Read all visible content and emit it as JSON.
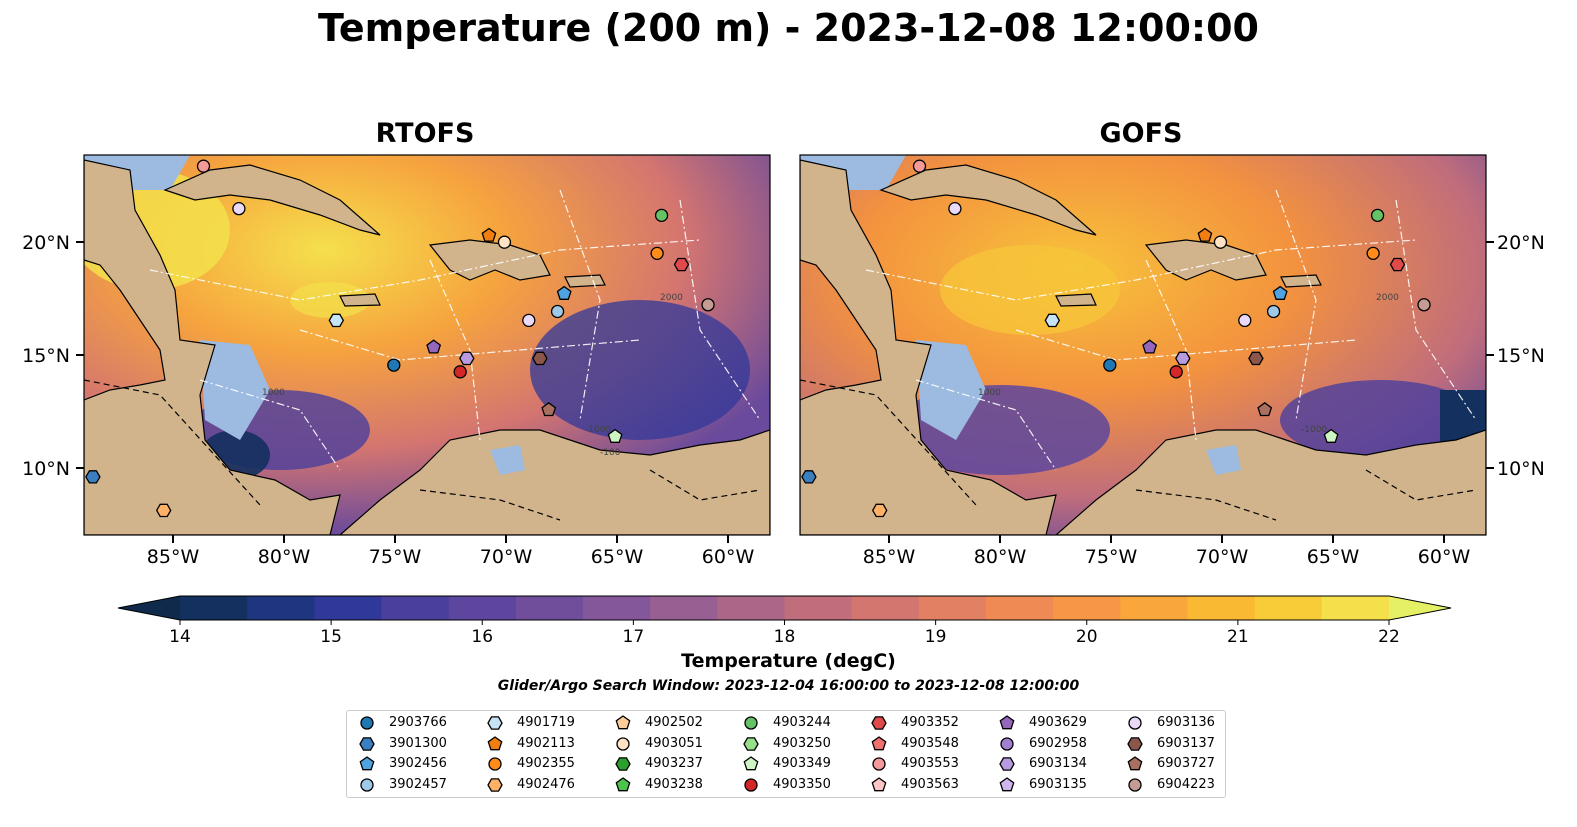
{
  "title": "Temperature (200 m) - 2023-12-08 12:00:00",
  "panels": [
    {
      "title": "RTOFS",
      "lon_ticks": [
        "85°W",
        "80°W",
        "75°W",
        "70°W",
        "65°W",
        "60°W"
      ],
      "lat_ticks": [
        "20°N",
        "15°N",
        "10°N"
      ]
    },
    {
      "title": "GOFS",
      "lon_ticks": [
        "85°W",
        "80°W",
        "75°W",
        "70°W",
        "65°W",
        "60°W"
      ],
      "lat_ticks": [
        "20°N",
        "15°N",
        "10°N"
      ]
    }
  ],
  "contour_labels": [
    "1000",
    "-1000",
    "2000",
    "-100"
  ],
  "colorbar": {
    "label": "Temperature (degC)",
    "min": 14,
    "max": 22,
    "step": 0.5,
    "ticks": [
      "14",
      "15",
      "16",
      "17",
      "18",
      "19",
      "20",
      "21",
      "22"
    ],
    "colors": [
      "#0f2a4a",
      "#14305e",
      "#1f3580",
      "#30389a",
      "#4b3f9e",
      "#5d469e",
      "#714e9c",
      "#84579a",
      "#985f92",
      "#ac6787",
      "#c06d7c",
      "#d37670",
      "#e28064",
      "#ef8a55",
      "#f69646",
      "#f9a63a",
      "#fab933",
      "#f8cc38",
      "#f3e04a",
      "#e5f064"
    ],
    "extend": "both"
  },
  "search_window": "Glider/Argo Search Window: 2023-12-04 16:00:00 to 2023-12-08 12:00:00",
  "legend": [
    {
      "id": "2903766",
      "marker": "circle",
      "color": "#1f77b4"
    },
    {
      "id": "3901300",
      "marker": "hexagon",
      "color": "#3a7fc0"
    },
    {
      "id": "3902456",
      "marker": "pentagon",
      "color": "#4ea3e0"
    },
    {
      "id": "3902457",
      "marker": "circle",
      "color": "#9ecae9"
    },
    {
      "id": "4901719",
      "marker": "hexagon",
      "color": "#c6e4f5"
    },
    {
      "id": "4902113",
      "marker": "pentagon",
      "color": "#f07e10"
    },
    {
      "id": "4902355",
      "marker": "circle",
      "color": "#ff8c1a"
    },
    {
      "id": "4902476",
      "marker": "hexagon",
      "color": "#ffb266"
    },
    {
      "id": "4902502",
      "marker": "pentagon",
      "color": "#ffcc99"
    },
    {
      "id": "4903051",
      "marker": "circle",
      "color": "#ffe3c4"
    },
    {
      "id": "4903237",
      "marker": "hexagon",
      "color": "#2ca02c"
    },
    {
      "id": "4903238",
      "marker": "pentagon",
      "color": "#4cc44c"
    },
    {
      "id": "4903244",
      "marker": "circle",
      "color": "#66c266"
    },
    {
      "id": "4903250",
      "marker": "hexagon",
      "color": "#98df8a"
    },
    {
      "id": "4903349",
      "marker": "pentagon",
      "color": "#cdf5c4"
    },
    {
      "id": "4903350",
      "marker": "circle",
      "color": "#d62728"
    },
    {
      "id": "4903352",
      "marker": "hexagon",
      "color": "#e04a4a"
    },
    {
      "id": "4903548",
      "marker": "pentagon",
      "color": "#f07070"
    },
    {
      "id": "4903553",
      "marker": "circle",
      "color": "#f59a9a"
    },
    {
      "id": "4903563",
      "marker": "pentagon",
      "color": "#fcc6c6"
    },
    {
      "id": "4903629",
      "marker": "pentagon",
      "color": "#9467bd"
    },
    {
      "id": "6902958",
      "marker": "circle",
      "color": "#a37fd0"
    },
    {
      "id": "6903134",
      "marker": "hexagon",
      "color": "#b89ae0"
    },
    {
      "id": "6903135",
      "marker": "pentagon",
      "color": "#cdb7ee"
    },
    {
      "id": "6903136",
      "marker": "circle",
      "color": "#ead9f7"
    },
    {
      "id": "6903137",
      "marker": "hexagon",
      "color": "#8c564b"
    },
    {
      "id": "6903727",
      "marker": "pentagon",
      "color": "#a9705f"
    },
    {
      "id": "6904223",
      "marker": "circle",
      "color": "#c49c94"
    }
  ],
  "floats": [
    {
      "id": "2903766",
      "lon": -75.0,
      "lat": 14.6
    },
    {
      "id": "3901300",
      "lon": -88.6,
      "lat": 9.6
    },
    {
      "id": "3902456",
      "lon": -67.3,
      "lat": 17.8
    },
    {
      "id": "3902457",
      "lon": -67.6,
      "lat": 17.0
    },
    {
      "id": "4901719",
      "lon": -77.6,
      "lat": 16.6
    },
    {
      "id": "4902113",
      "lon": -70.7,
      "lat": 20.4
    },
    {
      "id": "4902355",
      "lon": -63.1,
      "lat": 19.6
    },
    {
      "id": "4902476",
      "lon": -85.4,
      "lat": 8.1
    },
    {
      "id": "4903051",
      "lon": -70.0,
      "lat": 20.1
    },
    {
      "id": "4903244",
      "lon": -62.9,
      "lat": 21.3
    },
    {
      "id": "4903349",
      "lon": -65.0,
      "lat": 11.4
    },
    {
      "id": "4903350",
      "lon": -72.0,
      "lat": 14.3
    },
    {
      "id": "4903352",
      "lon": -62.0,
      "lat": 19.1
    },
    {
      "id": "4903553",
      "lon": -83.6,
      "lat": 23.5
    },
    {
      "id": "4903629",
      "lon": -73.2,
      "lat": 15.4
    },
    {
      "id": "6903134",
      "lon": -71.7,
      "lat": 14.9
    },
    {
      "id": "6903136",
      "lon": -68.9,
      "lat": 16.6
    },
    {
      "id": "6903136",
      "lon": -82.0,
      "lat": 21.6
    },
    {
      "id": "6903137",
      "lon": -68.4,
      "lat": 14.9
    },
    {
      "id": "6903727",
      "lon": -68.0,
      "lat": 12.6
    },
    {
      "id": "6904223",
      "lon": -60.8,
      "lat": 17.3
    }
  ]
}
